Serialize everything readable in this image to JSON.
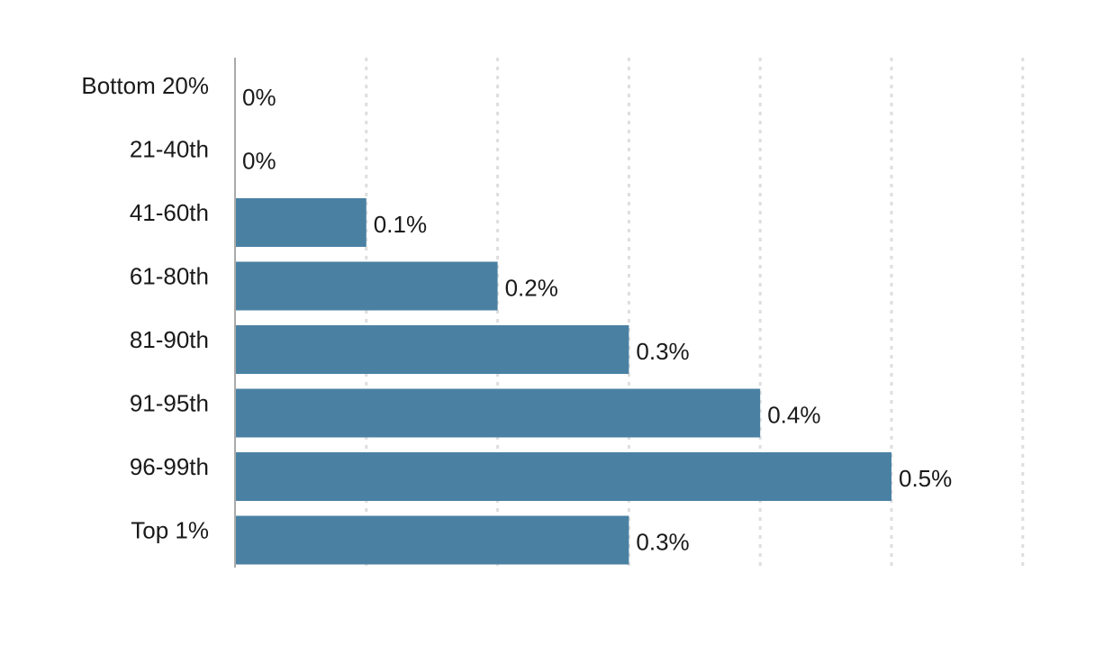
{
  "chart_data": {
    "type": "bar",
    "orientation": "horizontal",
    "categories": [
      "Bottom 20%",
      "21-40th",
      "41-60th",
      "61-80th",
      "81-90th",
      "91-95th",
      "96-99th",
      "Top 1%"
    ],
    "values": [
      0,
      0,
      0.1,
      0.2,
      0.3,
      0.4,
      0.5,
      0.3
    ],
    "value_labels": [
      "0%",
      "0%",
      "0.1%",
      "0.2%",
      "0.3%",
      "0.4%",
      "0.5%",
      "0.3%"
    ],
    "xlim": [
      0,
      0.6
    ],
    "grid": true,
    "grid_style": "dotted vertical",
    "bar_color": "#4a81a3",
    "title": "",
    "xlabel": "",
    "ylabel": ""
  }
}
